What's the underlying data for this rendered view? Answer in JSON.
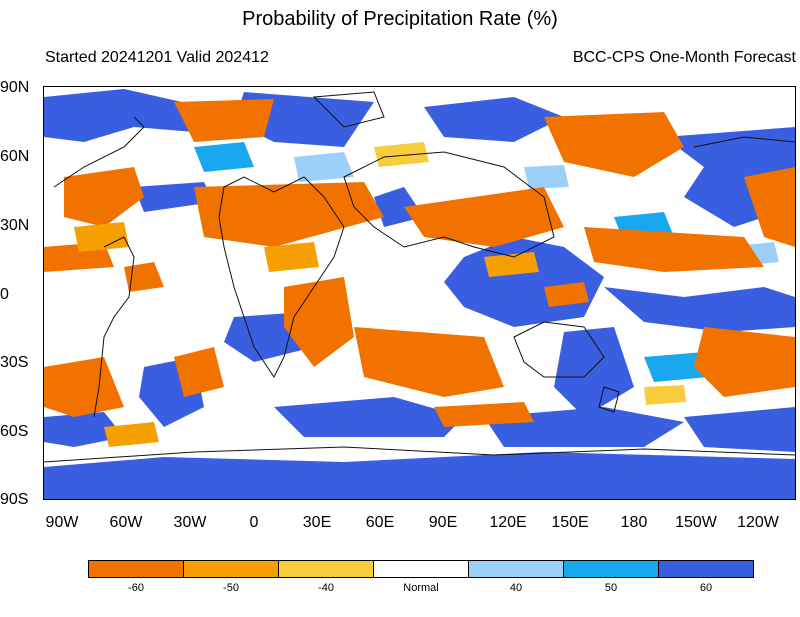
{
  "title": "Probability of Precipitation Rate (%)",
  "subtitle_left": "Started 20241201  Valid 202412",
  "subtitle_right": "BCC-CPS One-Month Forecast",
  "lat_labels": [
    "90N",
    "60N",
    "30N",
    "0",
    "30S",
    "60S",
    "90S"
  ],
  "lon_labels": [
    "90W",
    "60W",
    "30W",
    "0",
    "30E",
    "60E",
    "90E",
    "120E",
    "150E",
    "180",
    "150W",
    "120W"
  ],
  "legend": {
    "labels": [
      "-60",
      "-50",
      "-40",
      "Normal",
      "40",
      "50",
      "60"
    ],
    "colors": [
      "#f27200",
      "#f5a000",
      "#f8cc3c",
      "#ffffff",
      "#9cd0f8",
      "#19a8f0",
      "#3a5ee0"
    ]
  },
  "colors": {
    "dry_strong": "#f27200",
    "wet_strong": "#3a5ee0",
    "wet_mid": "#19a8f0",
    "coast": "#111111"
  }
}
